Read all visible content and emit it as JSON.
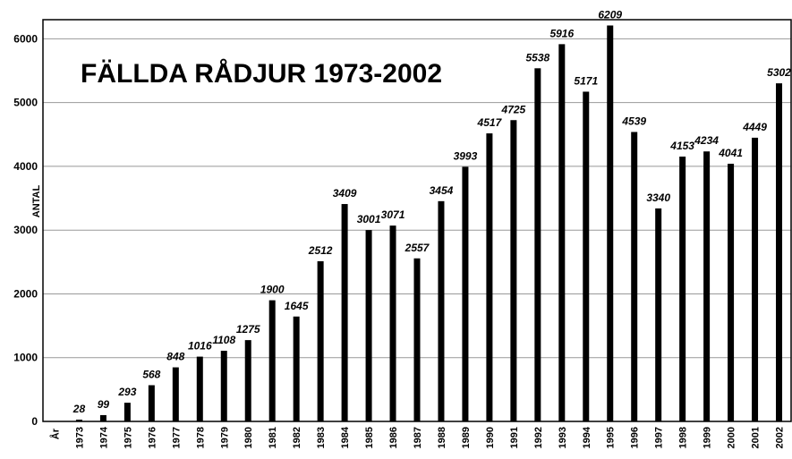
{
  "chart_data": {
    "type": "bar",
    "title": "FÄLLDA RÅDJUR 1973-2002",
    "xlabel": "År",
    "ylabel": "ANTAL",
    "categories": [
      "1973",
      "1974",
      "1975",
      "1976",
      "1977",
      "1978",
      "1979",
      "1980",
      "1981",
      "1982",
      "1983",
      "1984",
      "1985",
      "1986",
      "1987",
      "1988",
      "1989",
      "1990",
      "1991",
      "1992",
      "1993",
      "1994",
      "1995",
      "1996",
      "1997",
      "1998",
      "1999",
      "2000",
      "2001",
      "2002"
    ],
    "values": [
      28,
      99,
      293,
      568,
      848,
      1016,
      1108,
      1275,
      1900,
      1645,
      2512,
      3409,
      3001,
      3071,
      2557,
      3454,
      3993,
      4517,
      4725,
      5538,
      5916,
      5171,
      6209,
      4539,
      3340,
      4153,
      4234,
      4041,
      4449,
      5302
    ],
    "color": "#000000",
    "ylim": [
      0,
      6300
    ],
    "yticks": [
      0,
      1000,
      2000,
      3000,
      4000,
      5000,
      6000
    ],
    "grid": true
  }
}
